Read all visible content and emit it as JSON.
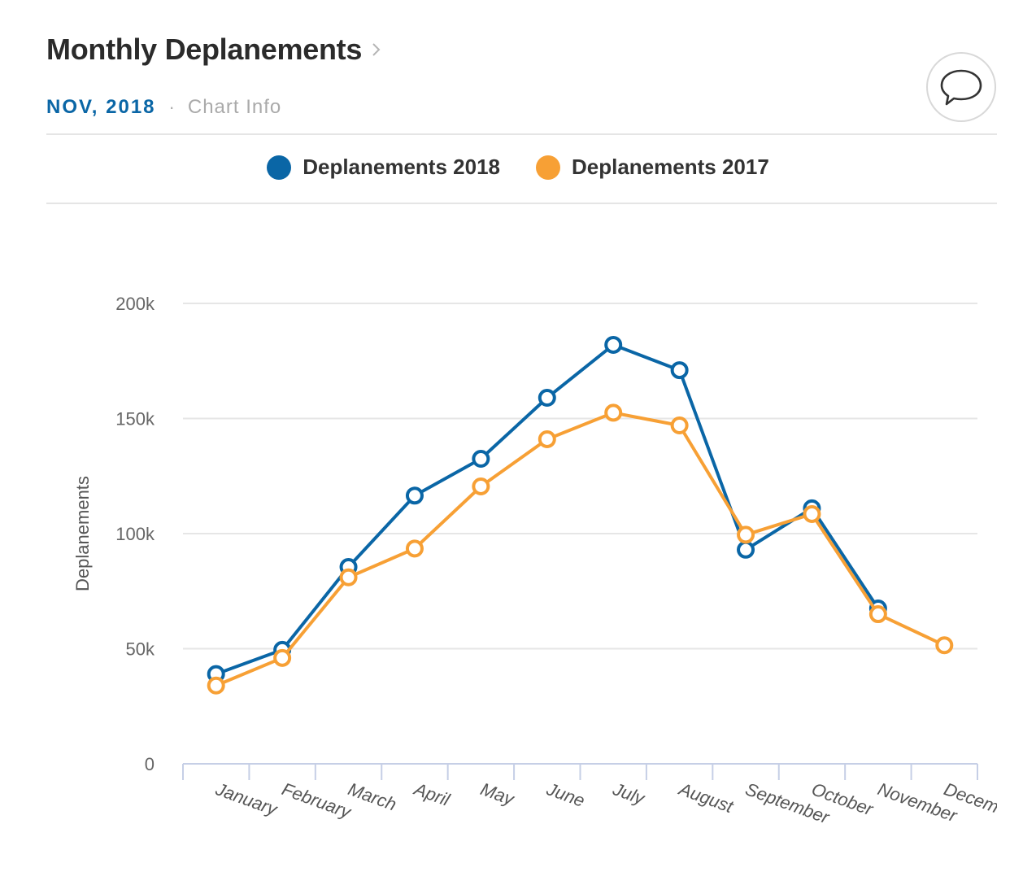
{
  "header": {
    "title": "Monthly Deplanements",
    "period": "NOV, 2018",
    "chart_info_label": "Chart Info"
  },
  "colors": {
    "series_2018": "#0a66a6",
    "series_2017": "#f7a035",
    "grid": "#e6e6e6",
    "axis": "#c6cfe6"
  },
  "chart_data": {
    "type": "line",
    "title": "",
    "xlabel": "",
    "ylabel": "Deplanements",
    "ylim": [
      0,
      200000
    ],
    "yticks": [
      0,
      50000,
      100000,
      150000,
      200000
    ],
    "ytick_labels": [
      "0",
      "50k",
      "100k",
      "150k",
      "200k"
    ],
    "categories": [
      "January",
      "February",
      "March",
      "April",
      "May",
      "June",
      "July",
      "August",
      "September",
      "October",
      "November",
      "Decem"
    ],
    "legend_position": "top-center",
    "series": [
      {
        "name": "Deplanements 2018",
        "color": "#0a66a6",
        "values": [
          39000,
          49500,
          85500,
          116500,
          132500,
          159000,
          182000,
          171000,
          93000,
          111000,
          67500,
          null
        ]
      },
      {
        "name": "Deplanements 2017",
        "color": "#f7a035",
        "values": [
          34000,
          46000,
          81000,
          93500,
          120500,
          141000,
          152500,
          147000,
          99500,
          108500,
          65000,
          51500
        ]
      }
    ]
  }
}
